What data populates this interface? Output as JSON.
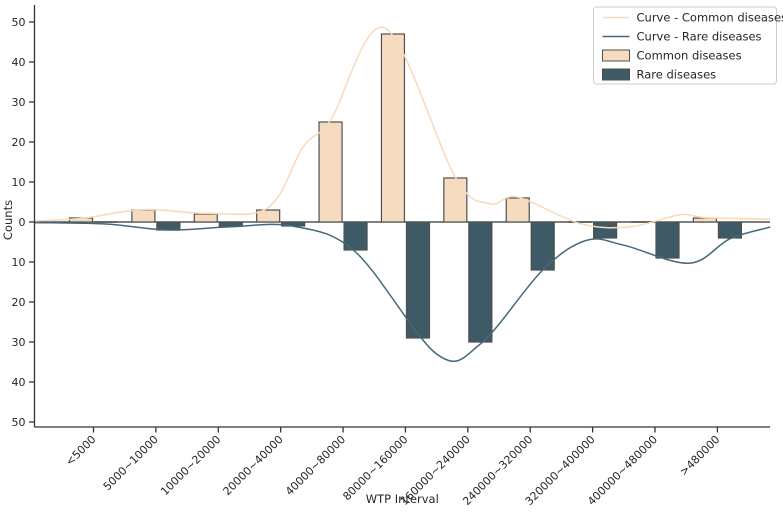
{
  "chart_data": {
    "type": "bar",
    "title": "",
    "xlabel": "WTP Interval",
    "ylabel": "Counts",
    "categories": [
      "<5000",
      "5000~10000",
      "10000~20000",
      "20000~40000",
      "40000~80000",
      "80000~160000",
      "160000~240000",
      "240000~320000",
      "320000~400000",
      "400000~480000",
      ">480000"
    ],
    "series": [
      {
        "name": "Common diseases",
        "orientation": "up",
        "values": [
          1,
          3,
          2,
          3,
          25,
          47,
          11,
          6,
          0,
          0,
          1
        ]
      },
      {
        "name": "Rare diseases",
        "orientation": "down",
        "values": [
          0,
          2,
          1,
          1,
          7,
          29,
          30,
          12,
          4,
          9,
          4
        ]
      }
    ],
    "curves": [
      {
        "name": "Curve - Common diseases",
        "points": [
          [
            -0.93,
            0.25
          ],
          [
            -0.2,
            0.9
          ],
          [
            0.8,
            3.1
          ],
          [
            1.8,
            2.2
          ],
          [
            2.8,
            3.6
          ],
          [
            3.36,
            18.8
          ],
          [
            3.8,
            25.5
          ],
          [
            4.67,
            48.5
          ],
          [
            5.8,
            11.2
          ],
          [
            6.35,
            4.6
          ],
          [
            6.8,
            6.2
          ],
          [
            7.8,
            -0.4
          ],
          [
            8.6,
            -1.2
          ],
          [
            9.4,
            1.8
          ],
          [
            9.8,
            1.1
          ],
          [
            10.84,
            0.7
          ]
        ]
      },
      {
        "name": "Curve - Rare diseases",
        "points": [
          [
            -0.93,
            -0.15
          ],
          [
            0.2,
            -0.5
          ],
          [
            1.2,
            -2.0
          ],
          [
            2.2,
            -1.2
          ],
          [
            3.2,
            -1.05
          ],
          [
            4.2,
            -7.5
          ],
          [
            5.5,
            -33
          ],
          [
            6.2,
            -30.5
          ],
          [
            7.2,
            -12
          ],
          [
            7.9,
            -4.6
          ],
          [
            8.5,
            -5.8
          ],
          [
            9.55,
            -10.3
          ],
          [
            10.2,
            -4.2
          ],
          [
            10.84,
            -1.3
          ]
        ]
      }
    ],
    "y_ticks": [
      50,
      40,
      30,
      20,
      10,
      0,
      -10,
      -20,
      -30,
      -40,
      -50
    ],
    "y_tick_labels": [
      "50",
      "40",
      "30",
      "20",
      "10",
      "0",
      "10",
      "20",
      "30",
      "40",
      "50"
    ],
    "ylim": [
      -51.5,
      53.5
    ],
    "legend": [
      "Curve - Common diseases",
      "Curve - Rare diseases",
      "Common diseases",
      "Rare diseases"
    ],
    "legend_position": "upper right",
    "grid": false,
    "colors": {
      "common_bar_fill": "#f5dcc0",
      "rare_bar_fill": "#3e5a66",
      "common_curve": "#f9d9b8",
      "rare_curve": "#44697a",
      "bar_edge": "#4f4f4f",
      "axis": "#333333",
      "legend_border": "#cccccc",
      "background": "#ffffff"
    }
  }
}
